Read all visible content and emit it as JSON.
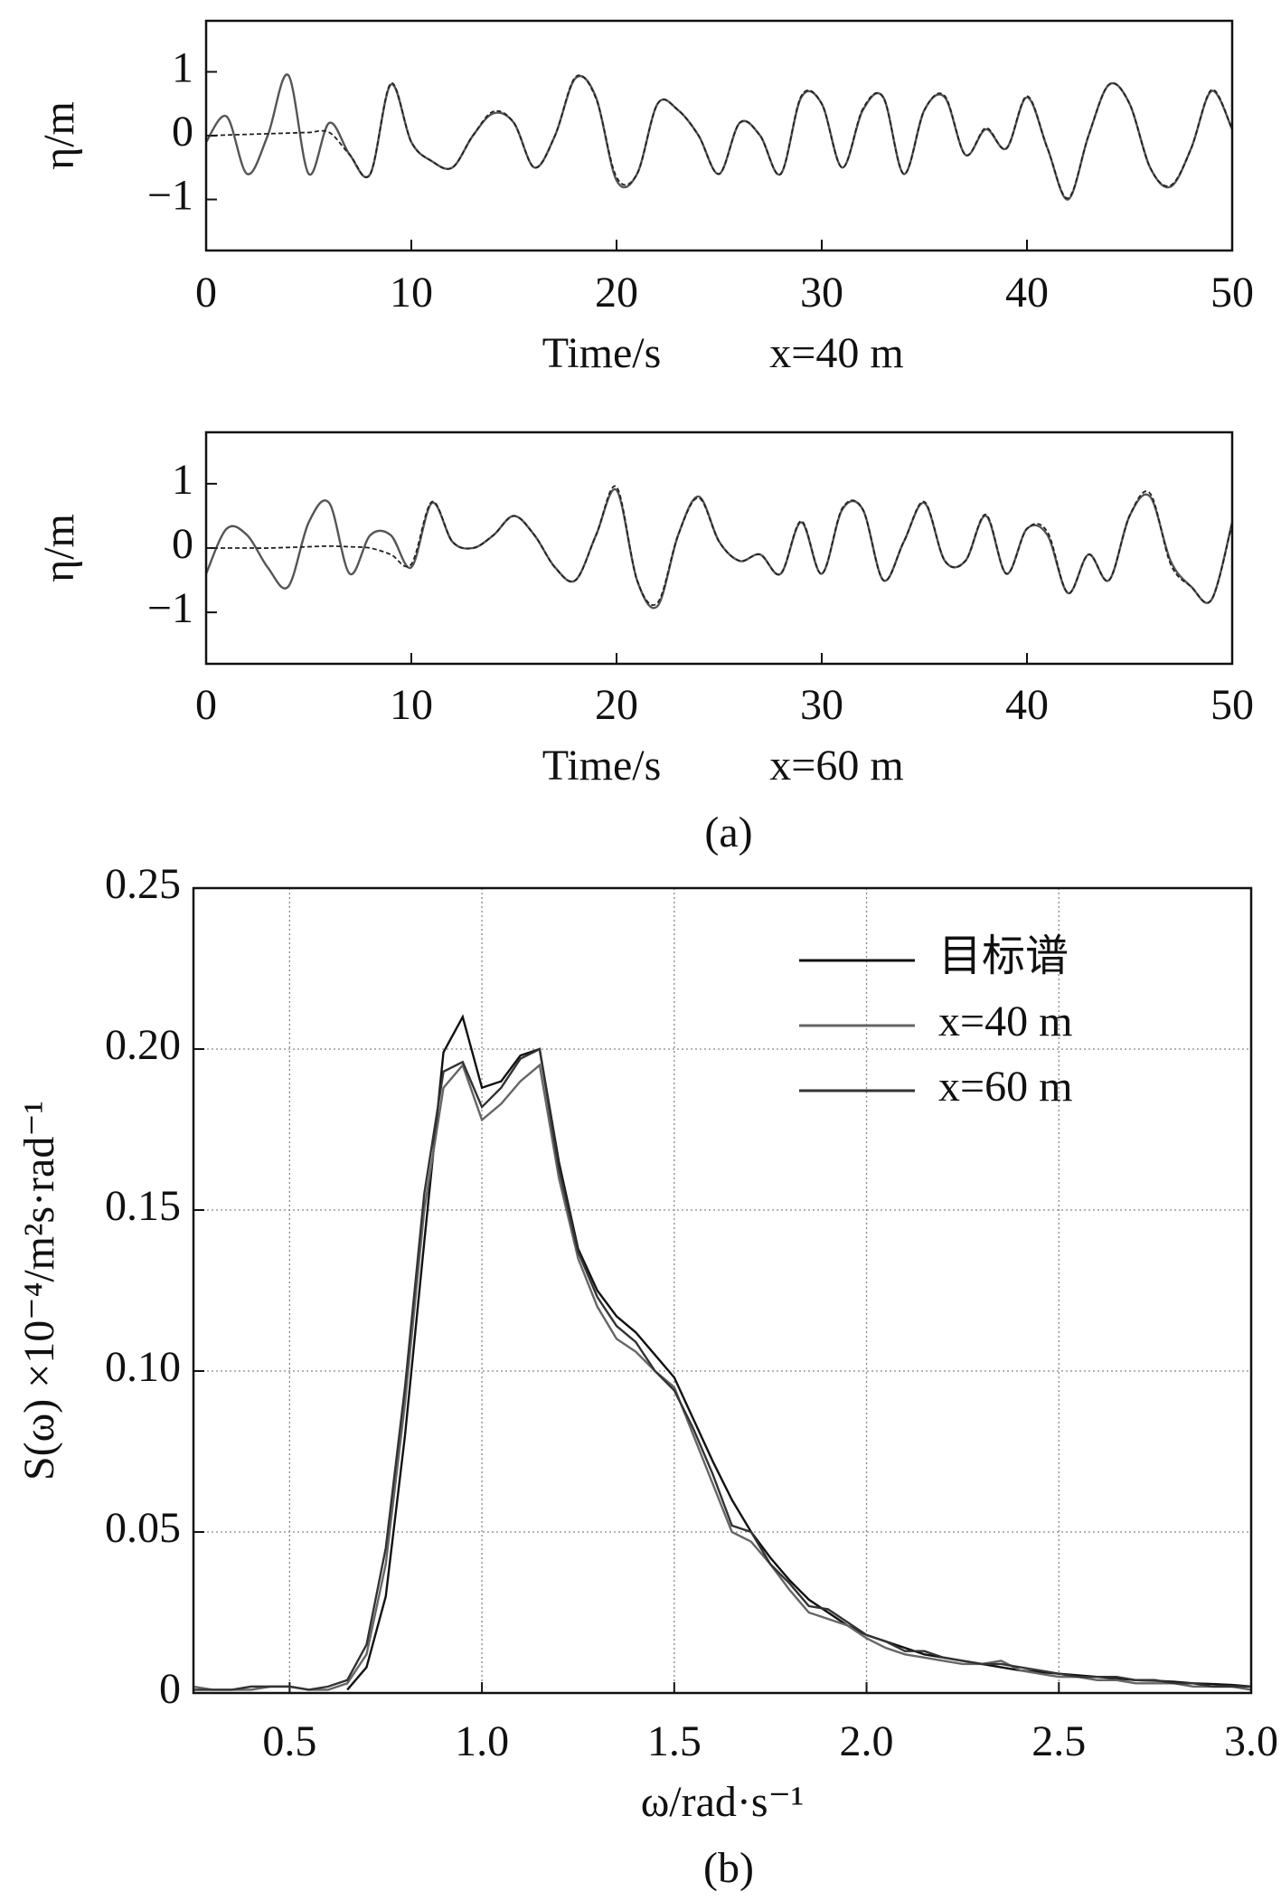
{
  "chart_data": [
    {
      "type": "line",
      "xlabel": "Time/s",
      "annotation": "x=40 m",
      "ylabel": "η/m",
      "x": [
        0,
        1,
        2,
        3,
        4,
        5,
        6,
        7,
        8,
        9,
        10,
        11,
        12,
        13,
        14,
        15,
        16,
        17,
        18,
        19,
        20,
        21,
        22,
        23,
        24,
        25,
        26,
        27,
        28,
        29,
        30,
        31,
        32,
        33,
        34,
        35,
        36,
        37,
        38,
        39,
        40,
        41,
        42,
        43,
        44,
        45,
        46,
        47,
        48,
        49,
        50
      ],
      "xlim": [
        0,
        50
      ],
      "xticks": [
        0,
        10,
        20,
        30,
        40,
        50
      ],
      "ylim": [
        -1.8,
        1.8
      ],
      "yticks": [
        {
          "value": -1,
          "label": "−1"
        },
        0,
        1
      ],
      "series": [
        {
          "color": "#555555",
          "style": "solid",
          "values": [
            -0.1,
            0.3,
            -0.6,
            0,
            0.95,
            -0.6,
            0.2,
            -0.3,
            -0.6,
            0.8,
            -0.1,
            -0.4,
            -0.5,
            0,
            0.35,
            0.2,
            -0.5,
            0,
            0.9,
            0.6,
            -0.7,
            -0.6,
            0.5,
            0.4,
            0,
            -0.6,
            0.2,
            0,
            -0.6,
            0.6,
            0.5,
            -0.5,
            0.4,
            0.6,
            -0.6,
            0.4,
            0.6,
            -0.3,
            0.1,
            -0.2,
            0.6,
            -0.2,
            -1,
            0,
            0.8,
            0.5,
            -0.5,
            -0.8,
            -0.2,
            0.7,
            0.1
          ]
        },
        {
          "color": "#222222",
          "style": "dashed",
          "values": [
            0,
            0.01,
            0.02,
            0.03,
            0.04,
            0.05,
            0.05,
            -0.3,
            -0.6,
            0.82,
            -0.1,
            -0.4,
            -0.5,
            0,
            0.38,
            0.2,
            -0.5,
            0,
            0.92,
            0.58,
            -0.65,
            -0.6,
            0.5,
            0.4,
            0,
            -0.6,
            0.2,
            0,
            -0.6,
            0.62,
            0.5,
            -0.5,
            0.42,
            0.6,
            -0.6,
            0.4,
            0.62,
            -0.3,
            0.12,
            -0.2,
            0.62,
            -0.2,
            -0.98,
            0,
            0.8,
            0.5,
            -0.5,
            -0.78,
            -0.2,
            0.72,
            0.1
          ]
        }
      ]
    },
    {
      "type": "line",
      "xlabel": "Time/s",
      "annotation": "x=60 m",
      "ylabel": "η/m",
      "x": [
        0,
        1,
        2,
        3,
        4,
        5,
        6,
        7,
        8,
        9,
        10,
        11,
        12,
        13,
        14,
        15,
        16,
        17,
        18,
        19,
        20,
        21,
        22,
        23,
        24,
        25,
        26,
        27,
        28,
        29,
        30,
        31,
        32,
        33,
        34,
        35,
        36,
        37,
        38,
        39,
        40,
        41,
        42,
        43,
        44,
        45,
        46,
        47,
        48,
        49,
        50
      ],
      "xlim": [
        0,
        50
      ],
      "xticks": [
        0,
        10,
        20,
        30,
        40,
        50
      ],
      "ylim": [
        -1.8,
        1.8
      ],
      "yticks": [
        {
          "value": -1,
          "label": "−1"
        },
        0,
        1
      ],
      "series": [
        {
          "color": "#555555",
          "style": "solid",
          "values": [
            -0.4,
            0.3,
            0.2,
            -0.3,
            -0.6,
            0.4,
            0.7,
            -0.4,
            0.2,
            0.2,
            -0.3,
            0.7,
            0.1,
            0,
            0.2,
            0.5,
            0.2,
            -0.3,
            -0.5,
            0.2,
            0.9,
            -0.5,
            -0.9,
            0.2,
            0.8,
            0.1,
            -0.2,
            -0.1,
            -0.4,
            0.4,
            -0.4,
            0.6,
            0.6,
            -0.5,
            0.1,
            0.7,
            -0.2,
            -0.2,
            0.5,
            -0.4,
            0.3,
            0.2,
            -0.7,
            -0.1,
            -0.5,
            0.5,
            0.8,
            -0.2,
            -0.6,
            -0.8,
            0.4
          ]
        },
        {
          "color": "#222222",
          "style": "dashed",
          "values": [
            0,
            0,
            0,
            0,
            0.01,
            0.02,
            0.03,
            0.02,
            0,
            -0.1,
            -0.25,
            0.72,
            0.1,
            0,
            0.2,
            0.5,
            0.2,
            -0.3,
            -0.5,
            0.2,
            0.95,
            -0.5,
            -0.85,
            0.2,
            0.78,
            0.1,
            -0.2,
            -0.1,
            -0.4,
            0.42,
            -0.4,
            0.62,
            0.6,
            -0.5,
            0.1,
            0.72,
            -0.2,
            -0.2,
            0.52,
            -0.4,
            0.3,
            0.25,
            -0.7,
            -0.1,
            -0.5,
            0.5,
            0.85,
            -0.25,
            -0.6,
            -0.8,
            0.38
          ]
        }
      ]
    },
    {
      "type": "line",
      "xlabel": "ω/rad·s⁻¹",
      "ylabel": "S(ω) ×10⁻⁴/m²s·rad⁻¹",
      "grid": true,
      "legend": "upper right",
      "x": [
        0.25,
        0.3,
        0.35,
        0.4,
        0.45,
        0.5,
        0.55,
        0.6,
        0.65,
        0.7,
        0.75,
        0.8,
        0.85,
        0.9,
        0.95,
        1.0,
        1.05,
        1.1,
        1.15,
        1.2,
        1.25,
        1.3,
        1.35,
        1.4,
        1.45,
        1.5,
        1.55,
        1.6,
        1.65,
        1.7,
        1.75,
        1.8,
        1.85,
        1.9,
        1.95,
        2.0,
        2.05,
        2.1,
        2.15,
        2.2,
        2.25,
        2.3,
        2.35,
        2.4,
        2.45,
        2.5,
        2.55,
        2.6,
        2.65,
        2.7,
        2.75,
        2.8,
        2.85,
        2.9,
        2.95,
        3.0
      ],
      "xlim": [
        0.25,
        3.0
      ],
      "xticks": [
        0.5,
        {
          "value": 1,
          "label": "1.0"
        },
        1.5,
        {
          "value": 2,
          "label": "2.0"
        },
        2.5,
        {
          "value": 3,
          "label": "3.0"
        }
      ],
      "ylim": [
        0,
        0.25
      ],
      "yticks": [
        0,
        0.05,
        {
          "value": 0.1,
          "label": "0.10"
        },
        0.15,
        {
          "value": 0.2,
          "label": "0.20"
        },
        0.25
      ],
      "series": [
        {
          "name": "目标谱",
          "color": "#111111",
          "values": [
            null,
            null,
            null,
            null,
            null,
            null,
            null,
            null,
            0.001,
            0.008,
            0.03,
            0.08,
            0.14,
            0.199,
            0.21,
            0.188,
            0.19,
            0.198,
            0.2,
            0.165,
            0.138,
            0.125,
            0.117,
            0.112,
            0.105,
            0.098,
            0.085,
            0.072,
            0.06,
            0.05,
            0.042,
            0.035,
            0.029,
            0.025,
            0.021,
            0.018,
            0.016,
            0.014,
            0.012,
            0.011,
            0.01,
            0.009,
            0.008,
            0.007,
            0.0065,
            0.006,
            0.0055,
            0.005,
            0.0045,
            0.004,
            0.0038,
            0.0035,
            0.003,
            0.0028,
            0.0025,
            0.002
          ]
        },
        {
          "name": "x=40 m",
          "color": "#666666",
          "values": [
            0.002,
            0.001,
            0.001,
            0.001,
            0.002,
            0.002,
            0.001,
            0.001,
            0.003,
            0.012,
            0.04,
            0.09,
            0.15,
            0.188,
            0.195,
            0.178,
            0.183,
            0.19,
            0.195,
            0.16,
            0.135,
            0.12,
            0.11,
            0.106,
            0.1,
            0.095,
            0.08,
            0.065,
            0.05,
            0.047,
            0.04,
            0.032,
            0.025,
            0.023,
            0.021,
            0.017,
            0.014,
            0.012,
            0.011,
            0.01,
            0.009,
            0.009,
            0.01,
            0.007,
            0.006,
            0.005,
            0.005,
            0.004,
            0.004,
            0.003,
            0.003,
            0.003,
            0.002,
            0.002,
            0.002,
            0.001
          ]
        },
        {
          "name": "x=60 m",
          "color": "#333333",
          "values": [
            0.001,
            0.001,
            0.001,
            0.002,
            0.002,
            0.002,
            0.001,
            0.002,
            0.004,
            0.015,
            0.045,
            0.095,
            0.155,
            0.193,
            0.196,
            0.182,
            0.188,
            0.197,
            0.2,
            0.163,
            0.137,
            0.123,
            0.114,
            0.109,
            0.1,
            0.094,
            0.082,
            0.068,
            0.052,
            0.05,
            0.04,
            0.034,
            0.027,
            0.026,
            0.022,
            0.018,
            0.016,
            0.013,
            0.013,
            0.011,
            0.01,
            0.009,
            0.009,
            0.008,
            0.007,
            0.006,
            0.005,
            0.005,
            0.005,
            0.004,
            0.004,
            0.003,
            0.003,
            0.002,
            0.002,
            0.002
          ]
        }
      ]
    }
  ],
  "figure_labels": [
    "(a)",
    "(b)"
  ]
}
